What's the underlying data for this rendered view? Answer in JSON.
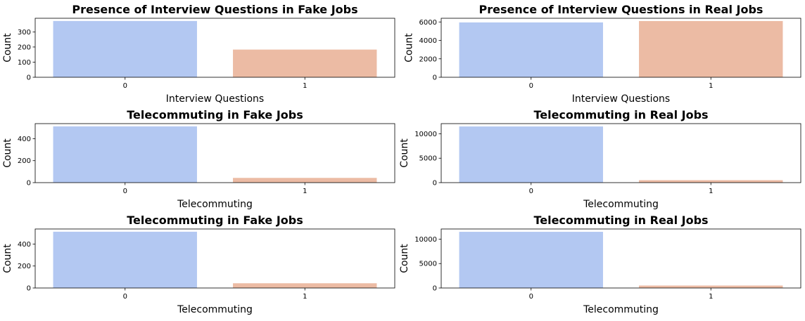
{
  "colors": {
    "category_0": "#b3c8f2",
    "category_1": "#ecbba4"
  },
  "chart_data": [
    {
      "type": "bar",
      "title": "Presence of Interview Questions in Fake Jobs",
      "xlabel": "Interview Questions",
      "ylabel": "Count",
      "categories": [
        "0",
        "1"
      ],
      "values": [
        372,
        183
      ],
      "ylim": [
        0,
        390
      ],
      "yticks": [
        0,
        100,
        200,
        300
      ],
      "ytick_labels": [
        "0",
        "100",
        "200",
        "300"
      ],
      "grid": false
    },
    {
      "type": "bar",
      "title": "Presence of Interview Questions in Real Jobs",
      "xlabel": "Interview Questions",
      "ylabel": "Count",
      "categories": [
        "0",
        "1"
      ],
      "values": [
        5950,
        6100
      ],
      "ylim": [
        0,
        6400
      ],
      "yticks": [
        0,
        2000,
        4000,
        6000
      ],
      "ytick_labels": [
        "0",
        "2000",
        "4000",
        "6000"
      ],
      "grid": false
    },
    {
      "type": "bar",
      "title": "Telecommuting in Fake Jobs",
      "xlabel": "Telecommuting",
      "ylabel": "Count",
      "categories": [
        "0",
        "1"
      ],
      "values": [
        512,
        43
      ],
      "ylim": [
        0,
        537
      ],
      "yticks": [
        0,
        200,
        400
      ],
      "ytick_labels": [
        "0",
        "200",
        "400"
      ],
      "grid": false
    },
    {
      "type": "bar",
      "title": "Telecommuting in Real Jobs",
      "xlabel": "Telecommuting",
      "ylabel": "Count",
      "categories": [
        "0",
        "1"
      ],
      "values": [
        11500,
        500
      ],
      "ylim": [
        0,
        12080
      ],
      "yticks": [
        0,
        5000,
        10000
      ],
      "ytick_labels": [
        "0",
        "5000",
        "10000"
      ],
      "grid": false
    },
    {
      "type": "bar",
      "title": "Telecommuting in Fake Jobs",
      "xlabel": "Telecommuting",
      "ylabel": "Count",
      "categories": [
        "0",
        "1"
      ],
      "values": [
        512,
        43
      ],
      "ylim": [
        0,
        537
      ],
      "yticks": [
        0,
        200,
        400
      ],
      "ytick_labels": [
        "0",
        "200",
        "400"
      ],
      "grid": false
    },
    {
      "type": "bar",
      "title": "Telecommuting in Real Jobs",
      "xlabel": "Telecommuting",
      "ylabel": "Count",
      "categories": [
        "0",
        "1"
      ],
      "values": [
        11500,
        500
      ],
      "ylim": [
        0,
        12080
      ],
      "yticks": [
        0,
        5000,
        10000
      ],
      "ytick_labels": [
        "0",
        "5000",
        "10000"
      ],
      "grid": false
    }
  ]
}
